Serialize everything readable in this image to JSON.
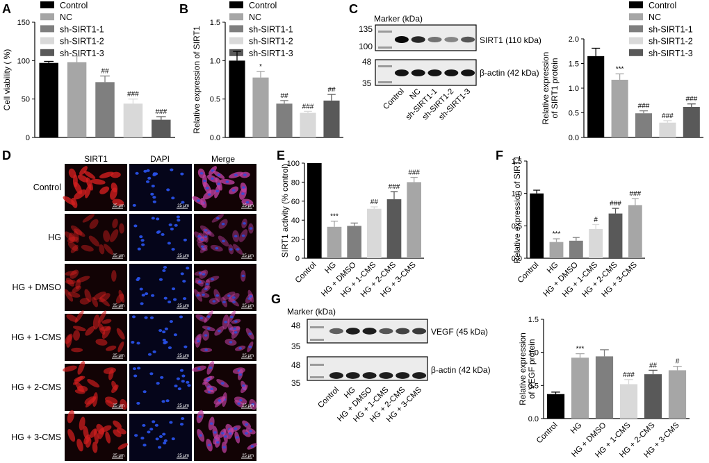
{
  "panels": {
    "A": {
      "letter": "A",
      "type": "bar",
      "ylabel": "Cell viability ( %)",
      "ylim": [
        0,
        150
      ],
      "yticks": [
        0,
        50,
        100,
        150
      ],
      "categories": [
        "Control",
        "NC",
        "sh-SIRT1-1",
        "sh-SIRT1-2",
        "sh-SIRT1-3"
      ],
      "values": [
        97,
        98,
        72,
        44,
        23
      ],
      "errors": [
        2,
        8,
        8,
        6,
        4
      ],
      "marks": [
        "",
        "",
        "##",
        "###",
        "###"
      ],
      "colors": [
        "#000000",
        "#a6a6a6",
        "#7f7f7f",
        "#d9d9d9",
        "#595959"
      ]
    },
    "B": {
      "letter": "B",
      "type": "bar",
      "ylabel": "Relative expression of SIRT1",
      "ylim": [
        0,
        1.5
      ],
      "yticks": [
        0.0,
        0.5,
        1.0,
        1.5
      ],
      "categories": [
        "Control",
        "NC",
        "sh-SIRT1-1",
        "sh-SIRT1-2",
        "sh-SIRT1-3"
      ],
      "values": [
        1.0,
        0.78,
        0.44,
        0.32,
        0.48
      ],
      "errors": [
        0.12,
        0.08,
        0.04,
        0.02,
        0.08
      ],
      "marks": [
        "",
        "*",
        "##",
        "###",
        "##"
      ],
      "colors": [
        "#000000",
        "#a6a6a6",
        "#7f7f7f",
        "#d9d9d9",
        "#595959"
      ]
    },
    "C": {
      "letter": "C",
      "type": "bar",
      "ylabel": "Relative expression of SIRT1 protein",
      "ylabel_lines": [
        "Relative expression",
        "of SIRT1 protein"
      ],
      "ylim": [
        0,
        2.0
      ],
      "yticks": [
        0.0,
        0.5,
        1.0,
        1.5,
        2.0
      ],
      "categories": [
        "Control",
        "NC",
        "sh-SIRT1-1",
        "sh-SIRT1-2",
        "sh-SIRT1-3"
      ],
      "values": [
        1.65,
        1.17,
        0.49,
        0.3,
        0.62
      ],
      "errors": [
        0.16,
        0.12,
        0.05,
        0.04,
        0.06
      ],
      "marks": [
        "",
        "***",
        "###",
        "###",
        "###"
      ],
      "colors": [
        "#000000",
        "#a6a6a6",
        "#7f7f7f",
        "#d9d9d9",
        "#595959"
      ]
    },
    "E": {
      "letter": "E",
      "type": "bar",
      "ylabel": "SIRT1 activity (% control)",
      "ylim": [
        0,
        100
      ],
      "yticks": [
        0,
        20,
        40,
        60,
        80,
        100
      ],
      "categories": [
        "Control",
        "HG",
        "HG + DMSO",
        "HG + 1-CMS",
        "HG + 2-CMS",
        "HG + 3-CMS"
      ],
      "values": [
        100,
        33,
        34,
        52,
        62,
        80
      ],
      "errors": [
        0,
        6,
        3,
        2,
        8,
        5
      ],
      "marks": [
        "",
        "***",
        "",
        "##",
        "###",
        "###"
      ],
      "colors": [
        "#000000",
        "#a6a6a6",
        "#7f7f7f",
        "#d9d9d9",
        "#595959",
        "#a6a6a6"
      ]
    },
    "F": {
      "letter": "F",
      "type": "bar",
      "ylabel": "Relative expression of SIRT1",
      "ylim": [
        0,
        1.5
      ],
      "yticks": [
        0.0,
        0.5,
        1.0,
        1.5
      ],
      "categories": [
        "Control",
        "HG",
        "HG + DMSO",
        "HG + 1-CMS",
        "HG + 2-CMS",
        "HG + 3-CMS"
      ],
      "values": [
        1.0,
        0.25,
        0.27,
        0.45,
        0.69,
        0.82
      ],
      "errors": [
        0.05,
        0.05,
        0.05,
        0.07,
        0.08,
        0.1
      ],
      "marks": [
        "",
        "***",
        "",
        "#",
        "###",
        "###"
      ],
      "colors": [
        "#000000",
        "#a6a6a6",
        "#7f7f7f",
        "#d9d9d9",
        "#595959",
        "#a6a6a6"
      ]
    },
    "G": {
      "letter": "G",
      "type": "bar",
      "ylabel": "Relative expression of VEGF protein",
      "ylabel_lines": [
        "Relative expression",
        "of VEGF protein"
      ],
      "ylim": [
        0,
        1.5
      ],
      "yticks": [
        0.0,
        0.5,
        1.0,
        1.5
      ],
      "categories": [
        "Control",
        "HG",
        "HG + DMSO",
        "HG + 1-CMS",
        "HG + 2-CMS",
        "HG + 3-CMS"
      ],
      "values": [
        0.37,
        0.92,
        0.94,
        0.52,
        0.67,
        0.73
      ],
      "errors": [
        0.03,
        0.06,
        0.1,
        0.07,
        0.06,
        0.06
      ],
      "marks": [
        "",
        "***",
        "",
        "###",
        "##",
        "#"
      ],
      "colors": [
        "#000000",
        "#a6a6a6",
        "#7f7f7f",
        "#d9d9d9",
        "#595959",
        "#a6a6a6"
      ]
    }
  },
  "legend": {
    "entries": [
      "Control",
      "NC",
      "sh-SIRT1-1",
      "sh-SIRT1-2",
      "sh-SIRT1-3"
    ],
    "colors": [
      "#000000",
      "#a6a6a6",
      "#7f7f7f",
      "#d9d9d9",
      "#595959"
    ]
  },
  "blot_C": {
    "letter": "C",
    "marker_title": "Marker (kDa)",
    "top_markers": [
      "135",
      "100"
    ],
    "bottom_markers": [
      "48",
      "35"
    ],
    "top_label": "SIRT1 (110 kDa)",
    "bottom_label": "β-actin (42 kDa)",
    "lanes": [
      "Control",
      "NC",
      "sh-SIRT1-1",
      "sh-SIRT1-2",
      "sh-SIRT1-3"
    ],
    "top_intensity": [
      1.0,
      0.85,
      0.45,
      0.35,
      0.6
    ],
    "bottom_intensity": [
      0.95,
      0.95,
      0.95,
      0.95,
      0.95
    ]
  },
  "blot_G": {
    "letter": "G",
    "marker_title": "Marker (kDa)",
    "top_markers": [
      "48",
      "35"
    ],
    "bottom_markers": [
      "48",
      "35"
    ],
    "top_label": "VEGF (45 kDa)",
    "bottom_label": "β-actin (42 kDa)",
    "lanes": [
      "Control",
      "HG",
      "HG + DMSO",
      "HG + 1-CMS",
      "HG + 2-CMS",
      "HG + 3-CMS"
    ],
    "top_intensity": [
      0.55,
      0.9,
      0.9,
      0.6,
      0.7,
      0.75
    ],
    "bottom_intensity": [
      0.9,
      0.9,
      0.9,
      0.9,
      0.9,
      0.9
    ]
  },
  "micro_D": {
    "letter": "D",
    "columns": [
      "SIRT1",
      "DAPI",
      "Merge"
    ],
    "rows": [
      "Control",
      "HG",
      "HG + DMSO",
      "HG + 1-CMS",
      "HG + 2-CMS",
      "HG + 3-CMS"
    ],
    "scale_label": "25 μm",
    "sirt1_level": [
      0.9,
      0.35,
      0.4,
      0.55,
      0.7,
      0.8
    ],
    "colors": {
      "sirt1": "#d21e1e",
      "dapi": "#2850e6",
      "merge": "#c040a0"
    }
  }
}
